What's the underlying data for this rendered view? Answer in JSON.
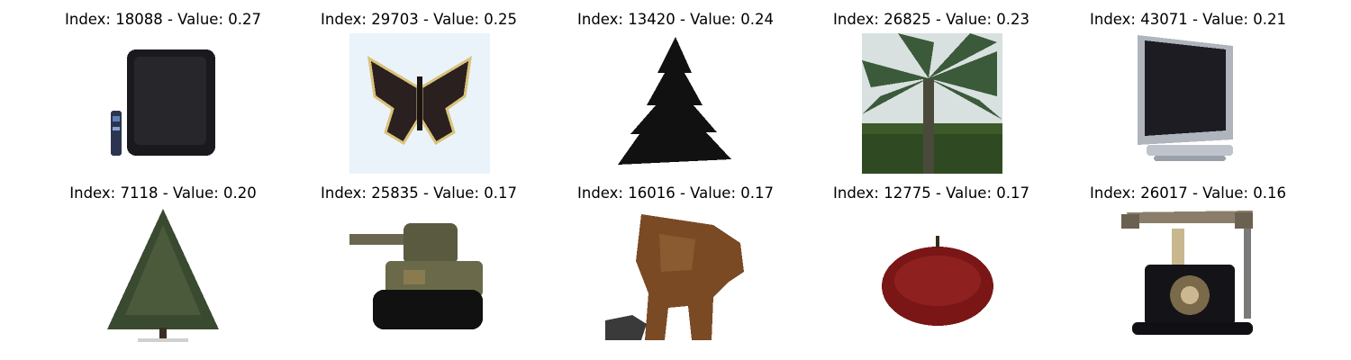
{
  "panels": [
    {
      "title": "Index: 18088 - Value: 0.27",
      "subject": "television-with-remote"
    },
    {
      "title": "Index: 29703 - Value: 0.25",
      "subject": "butterfly"
    },
    {
      "title": "Index: 13420 - Value: 0.24",
      "subject": "pine-tree-silhouette"
    },
    {
      "title": "Index: 26825 - Value: 0.23",
      "subject": "palm-tree"
    },
    {
      "title": "Index: 43071 - Value: 0.21",
      "subject": "flat-monitor"
    },
    {
      "title": "Index: 7118 - Value: 0.20",
      "subject": "conifer-tree"
    },
    {
      "title": "Index: 25835 - Value: 0.17",
      "subject": "toy-tank"
    },
    {
      "title": "Index: 16016 - Value: 0.17",
      "subject": "bear"
    },
    {
      "title": "Index: 12775 - Value: 0.17",
      "subject": "apple"
    },
    {
      "title": "Index: 26017 - Value: 0.16",
      "subject": "vintage-telephone"
    }
  ]
}
